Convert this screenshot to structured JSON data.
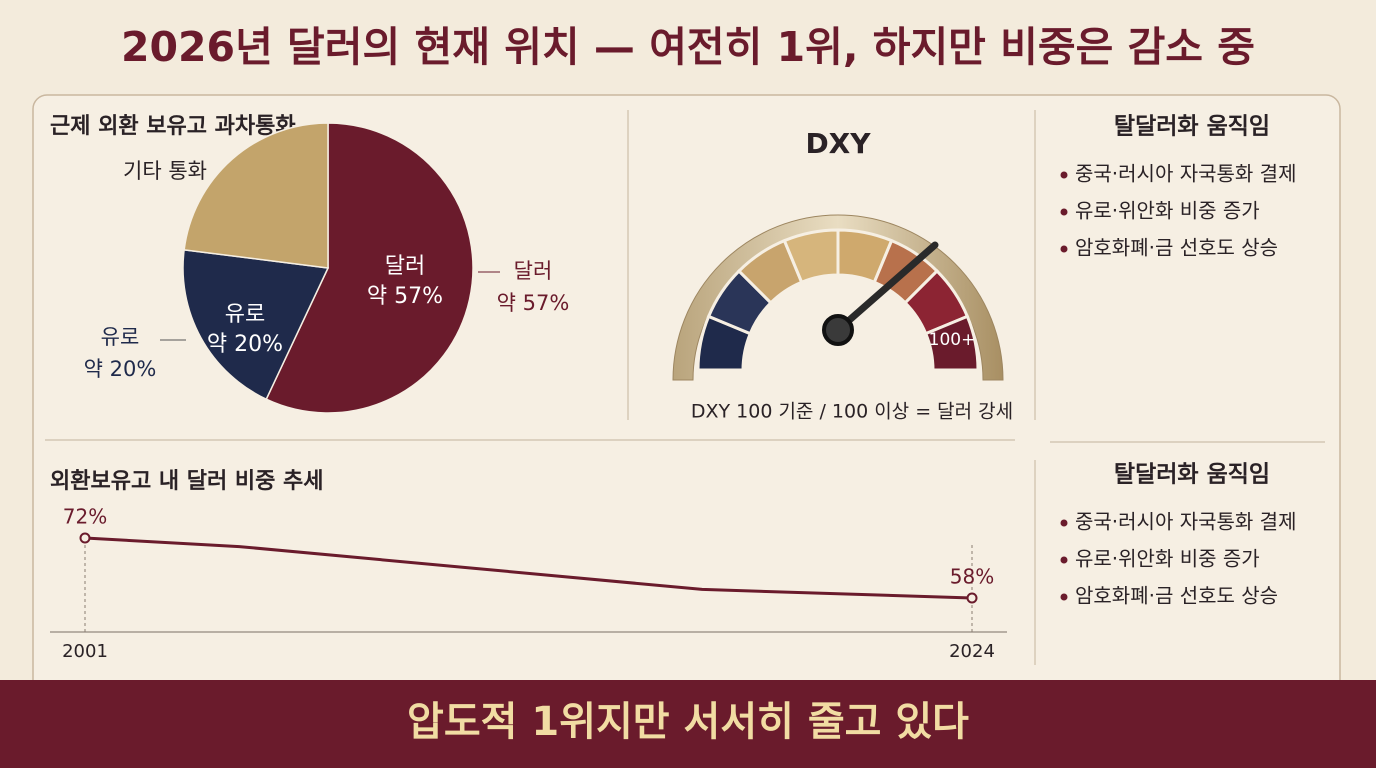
{
  "title": "2026년 달러의 현재 위치 — 여전히 1위, 하지만 비중은 감소 중",
  "chart_data": [
    {
      "type": "pie",
      "title": "근제 외환 보유고 과차통화",
      "categories": [
        "달러",
        "유로",
        "기타 통화"
      ],
      "values": [
        57,
        20,
        23
      ],
      "value_labels": [
        "약 57%",
        "약 20%",
        null
      ],
      "colors": [
        "#6a1b2c",
        "#1f2a4b",
        "#c3a46b"
      ]
    },
    {
      "type": "gauge",
      "title": "DXY",
      "label": "100+",
      "caption": "DXY 100 기준 / 100 이상 = 달러 강세"
    },
    {
      "type": "line",
      "title": "외환보유고 내 달러 비중 추세",
      "x": [
        2001,
        2005,
        2011,
        2017,
        2024
      ],
      "values": [
        72,
        70,
        65,
        60,
        58
      ],
      "value_labels": [
        "72%",
        null,
        null,
        null,
        "58%"
      ],
      "xticks": [
        2001,
        2024
      ],
      "color": "#6a1b2c"
    }
  ],
  "panels": [
    {
      "title": "탈달러화 움직임",
      "items": [
        "중국·러시아 자국통화 결제",
        "유로·위안화 비중 증가",
        "암호화폐·금 선호도 상승"
      ]
    },
    {
      "title": "탈달러화 움직임",
      "items": [
        "중국·러시아 자국통화 결제",
        "유로·위안화 비중 증가",
        "암호화폐·금 선호도 상승"
      ]
    }
  ],
  "footer": "압도적 1위지만 서서히 줄고 있다"
}
